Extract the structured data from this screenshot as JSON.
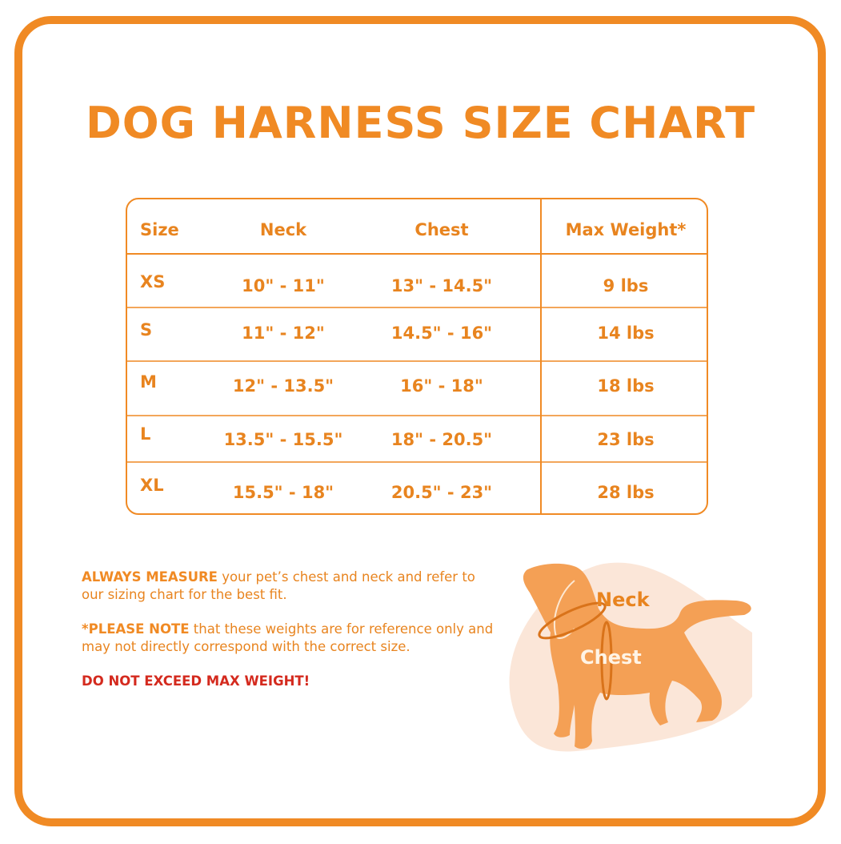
{
  "title": "DOG HARNESS SIZE CHART",
  "colors": {
    "accent": "#f08a24",
    "text": "#e8841f",
    "warning": "#d42a1e",
    "dog": "#f4a055",
    "blob": "#fbe6d8"
  },
  "table": {
    "headers": [
      "Size",
      "Neck",
      "Chest",
      "Max Weight*"
    ],
    "rows": [
      {
        "size": "XS",
        "neck": "10\" - 11\"",
        "chest": "13\" - 14.5\"",
        "max_weight": "9 lbs"
      },
      {
        "size": "S",
        "neck": "11\" - 12\"",
        "chest": "14.5\" - 16\"",
        "max_weight": "14 lbs"
      },
      {
        "size": "M",
        "neck": "12\" - 13.5\"",
        "chest": "16\" - 18\"",
        "max_weight": "18 lbs"
      },
      {
        "size": "L",
        "neck": "13.5\" - 15.5\"",
        "chest": "18\" - 20.5\"",
        "max_weight": "23 lbs"
      },
      {
        "size": "XL",
        "neck": "15.5\" - 18\"",
        "chest": "20.5\" - 23\"",
        "max_weight": "28 lbs"
      }
    ]
  },
  "notes": {
    "measure_bold": "ALWAYS MEASURE",
    "measure_text": " your pet’s chest and neck and refer to our sizing chart for the best fit.",
    "note_bold": "*PLEASE NOTE",
    "note_text": " that these weights are for reference only and may not directly correspond with the correct size.",
    "warning": "DO NOT EXCEED MAX WEIGHT!"
  },
  "illustration": {
    "neck_label": "Neck",
    "chest_label": "Chest",
    "icon": "dog-silhouette-icon"
  }
}
